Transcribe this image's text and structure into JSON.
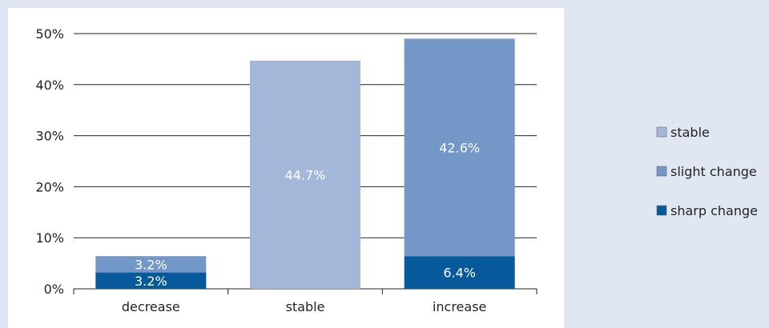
{
  "chart_data": {
    "type": "bar",
    "stacked": true,
    "categories": [
      "decrease",
      "stable",
      "increase"
    ],
    "series": [
      {
        "name": "sharp change",
        "color": "#065a9c",
        "values": [
          3.2,
          0,
          6.4
        ],
        "labels": [
          "3.2%",
          "",
          "6.4%"
        ]
      },
      {
        "name": "slight change",
        "color": "#7397c6",
        "values": [
          3.2,
          0,
          42.6
        ],
        "labels": [
          "3.2%",
          "",
          "42.6%"
        ]
      },
      {
        "name": "stable",
        "color": "#a4b7d8",
        "values": [
          0,
          44.7,
          0
        ],
        "labels": [
          "",
          "44.7%",
          ""
        ]
      }
    ],
    "ylim": [
      0,
      50
    ],
    "yticks": [
      0,
      10,
      20,
      30,
      40,
      50
    ],
    "ytick_labels": [
      "0%",
      "10%",
      "20%",
      "30%",
      "40%",
      "50%"
    ],
    "grid": true,
    "legend": {
      "position": "right",
      "order": [
        "stable",
        "slight change",
        "sharp change"
      ]
    },
    "title": "",
    "xlabel": "",
    "ylabel": ""
  }
}
